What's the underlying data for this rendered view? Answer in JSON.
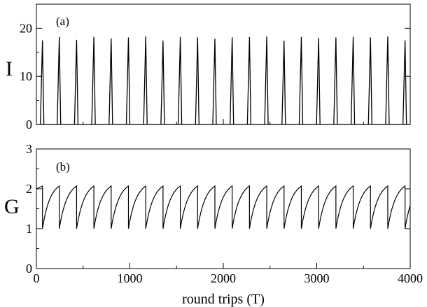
{
  "chart_data": [
    {
      "type": "line",
      "panel_label": "(a)",
      "ylabel": "I",
      "xlim": [
        0,
        4000
      ],
      "ylim": [
        0,
        25
      ],
      "yticks": [
        0,
        10,
        20
      ],
      "xticks": [
        0,
        1000,
        2000,
        3000,
        4000
      ],
      "xtick_labels_shown": false,
      "grid": false,
      "series": [
        {
          "style": "spikes",
          "x": [
            65,
            245,
            430,
            615,
            800,
            985,
            1170,
            1355,
            1540,
            1725,
            1910,
            2095,
            2280,
            2465,
            2650,
            2835,
            3020,
            3205,
            3390,
            3575,
            3760,
            3945
          ],
          "values": [
            17.5,
            18.2,
            17.6,
            18.2,
            17.9,
            18.1,
            18.3,
            17.4,
            18.2,
            18.1,
            17.8,
            18.1,
            18.2,
            18.3,
            17.4,
            18.2,
            18.0,
            18.1,
            18.2,
            18.1,
            18.3,
            17.5
          ]
        }
      ]
    },
    {
      "type": "line",
      "panel_label": "(b)",
      "ylabel": "G",
      "xlabel": "round trips (T)",
      "xlim": [
        0,
        4000
      ],
      "ylim": [
        0,
        3
      ],
      "yticks": [
        0,
        1,
        2,
        3
      ],
      "xticks": [
        0,
        1000,
        2000,
        3000,
        4000
      ],
      "xtick_labels": [
        "0",
        "1000",
        "2000",
        "3000",
        "4000"
      ],
      "grid": false,
      "gain_min": 1.0,
      "gain_max": 2.07,
      "series": [
        {
          "style": "sawtooth",
          "drop_x": [
            65,
            245,
            430,
            615,
            800,
            985,
            1170,
            1355,
            1540,
            1725,
            1910,
            2095,
            2280,
            2465,
            2650,
            2835,
            3020,
            3205,
            3390,
            3575,
            3760,
            3945
          ]
        }
      ]
    }
  ]
}
